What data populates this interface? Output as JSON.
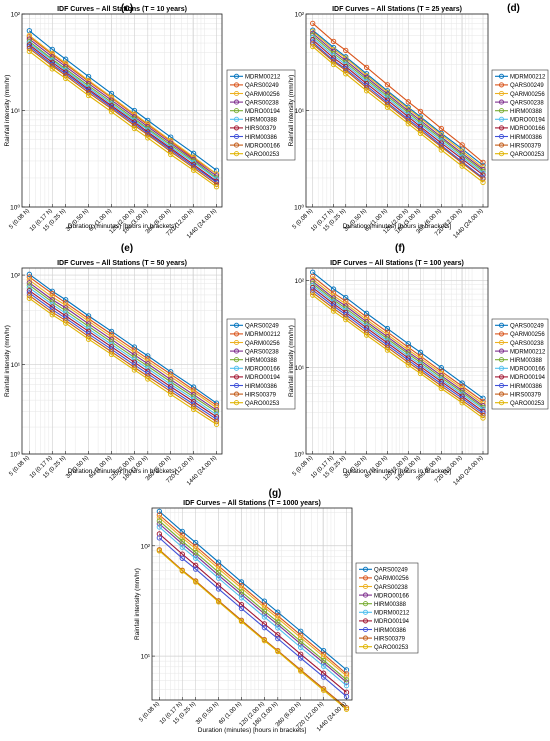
{
  "figure": {
    "x_ticks": [
      5,
      10,
      15,
      30,
      60,
      120,
      180,
      360,
      720,
      1440
    ],
    "x_tick_labels": [
      "5 (0.08 h)",
      "10 (0.17 h)",
      "15 (0.25 h)",
      "30 (0.50 h)",
      "60 (1.00 h)",
      "120 (2.00 h)",
      "180 (3.00 h)",
      "360 (6.00 h)",
      "720 (12.00 h)",
      "1440 (24.00 h)"
    ]
  },
  "chart_data": [
    {
      "panel_letter": "(c)",
      "type": "line",
      "title": "IDF Curves – All Stations (T = 10 years)",
      "xlabel": "Duration (minutes)  [hours in brackets]",
      "ylabel": "Rainfall intensity (mm/hr)",
      "x_scale": "log",
      "y_scale": "log",
      "ylim": [
        1,
        100
      ],
      "y_ticks": [
        1,
        10,
        100
      ],
      "y_tick_labels": [
        "10⁰",
        "10¹",
        "10²"
      ],
      "grid": true,
      "legend_position": "right",
      "x": [
        5,
        10,
        15,
        30,
        60,
        120,
        180,
        360,
        720,
        1440
      ],
      "series": [
        {
          "name": "MDRM00212",
          "color": "#0072bd",
          "values": [
            67,
            43,
            34,
            22.5,
            15,
            10,
            7.9,
            5.3,
            3.6,
            2.4
          ]
        },
        {
          "name": "QARS00249",
          "color": "#d95319",
          "values": [
            58,
            38,
            30,
            20,
            13.5,
            9,
            7.1,
            4.8,
            3.2,
            2.2
          ]
        },
        {
          "name": "QARM00256",
          "color": "#edb120",
          "values": [
            60,
            39,
            31,
            20.5,
            13.8,
            9.2,
            7.3,
            4.9,
            3.3,
            2.2
          ]
        },
        {
          "name": "QARS00238",
          "color": "#7e2f8e",
          "values": [
            55,
            36,
            28.5,
            19,
            12.8,
            8.6,
            6.8,
            4.6,
            3.1,
            2.1
          ]
        },
        {
          "name": "MDRO00194",
          "color": "#77ac30",
          "values": [
            52,
            34,
            27,
            18,
            12.2,
            8.2,
            6.5,
            4.4,
            3.0,
            2.0
          ]
        },
        {
          "name": "HIRM00388",
          "color": "#4dbeee",
          "values": [
            50,
            33,
            26,
            17.3,
            11.7,
            7.9,
            6.3,
            4.2,
            2.9,
            1.95
          ]
        },
        {
          "name": "HIRS00379",
          "color": "#a2142f",
          "values": [
            48,
            31.5,
            25,
            16.6,
            11.2,
            7.6,
            6.0,
            4.05,
            2.75,
            1.85
          ]
        },
        {
          "name": "HIRM00386",
          "color": "#3f51d8",
          "values": [
            46,
            30,
            24,
            16,
            10.8,
            7.3,
            5.8,
            3.9,
            2.65,
            1.8
          ]
        },
        {
          "name": "MDRO00166",
          "color": "#c25a16",
          "values": [
            44,
            29,
            23,
            15.3,
            10.4,
            7.0,
            5.6,
            3.75,
            2.55,
            1.72
          ]
        },
        {
          "name": "QARO00253",
          "color": "#e0b400",
          "values": [
            41,
            27,
            21.5,
            14.3,
            9.7,
            6.5,
            5.2,
            3.5,
            2.4,
            1.62
          ]
        }
      ]
    },
    {
      "panel_letter": "(d)",
      "type": "line",
      "title": "IDF Curves – All Stations (T = 25 years)",
      "xlabel": "Duration (minutes)  [hours in brackets]",
      "ylabel": "Rainfall intensity (mm/hr)",
      "x_scale": "log",
      "y_scale": "log",
      "ylim": [
        1,
        100
      ],
      "y_ticks": [
        1,
        10,
        100
      ],
      "y_tick_labels": [
        "10⁰",
        "10¹",
        "10²"
      ],
      "grid": true,
      "legend_position": "right",
      "x": [
        5,
        10,
        15,
        30,
        60,
        120,
        180,
        360,
        720,
        1440
      ],
      "series": [
        {
          "name": "MDRM00212",
          "color": "#0072bd",
          "values": [
            68,
            45,
            36,
            24,
            16,
            10.8,
            8.6,
            5.8,
            4.0,
            2.7
          ]
        },
        {
          "name": "QARS00249",
          "color": "#d95319",
          "values": [
            80,
            52,
            42,
            28,
            18.5,
            12.3,
            9.8,
            6.5,
            4.4,
            2.9
          ]
        },
        {
          "name": "QARM00256",
          "color": "#edb120",
          "values": [
            66,
            43,
            35,
            23,
            15.5,
            10.4,
            8.3,
            5.6,
            3.8,
            2.55
          ]
        },
        {
          "name": "QARS00238",
          "color": "#7e2f8e",
          "values": [
            63,
            41,
            33,
            22,
            14.8,
            9.9,
            7.9,
            5.3,
            3.6,
            2.45
          ]
        },
        {
          "name": "HIRM00388",
          "color": "#77ac30",
          "values": [
            60,
            39,
            31.5,
            21,
            14.1,
            9.5,
            7.5,
            5.1,
            3.45,
            2.35
          ]
        },
        {
          "name": "MDRO00194",
          "color": "#4dbeee",
          "values": [
            57,
            37,
            30,
            20,
            13.5,
            9.0,
            7.2,
            4.85,
            3.3,
            2.25
          ]
        },
        {
          "name": "MDRO00166",
          "color": "#a2142f",
          "values": [
            54,
            35,
            28.5,
            19,
            12.8,
            8.6,
            6.8,
            4.6,
            3.15,
            2.15
          ]
        },
        {
          "name": "HIRM00386",
          "color": "#3f51d8",
          "values": [
            51,
            33,
            27,
            18,
            12.1,
            8.1,
            6.5,
            4.35,
            2.95,
            2.0
          ]
        },
        {
          "name": "HIRS00379",
          "color": "#c25a16",
          "values": [
            49,
            32,
            26,
            17.2,
            11.6,
            7.8,
            6.2,
            4.2,
            2.85,
            1.95
          ]
        },
        {
          "name": "QARO00253",
          "color": "#e0b400",
          "values": [
            46,
            30,
            24,
            16,
            10.8,
            7.3,
            5.8,
            3.9,
            2.65,
            1.8
          ]
        }
      ]
    },
    {
      "panel_letter": "(e)",
      "type": "line",
      "title": "IDF Curves – All Stations (T = 50 years)",
      "xlabel": "Duration (minutes)  [hours in brackets]",
      "ylabel": "Rainfall intensity (mm/hr)",
      "x_scale": "log",
      "y_scale": "log",
      "ylim": [
        1,
        120
      ],
      "y_ticks": [
        1,
        10,
        100
      ],
      "y_tick_labels": [
        "10⁰",
        "10¹",
        "10²"
      ],
      "grid": true,
      "legend_position": "right",
      "x": [
        5,
        10,
        15,
        30,
        60,
        120,
        180,
        360,
        720,
        1440
      ],
      "series": [
        {
          "name": "QARS00249",
          "color": "#0072bd",
          "values": [
            102,
            66,
            53,
            35,
            23.5,
            15.7,
            12.5,
            8.3,
            5.6,
            3.7
          ]
        },
        {
          "name": "MDRM00212",
          "color": "#d95319",
          "values": [
            95,
            62,
            49,
            32.5,
            21.8,
            14.6,
            11.6,
            7.8,
            5.2,
            3.5
          ]
        },
        {
          "name": "QARM00256",
          "color": "#edb120",
          "values": [
            88,
            57,
            46,
            30.5,
            20.4,
            13.7,
            10.9,
            7.3,
            4.95,
            3.3
          ]
        },
        {
          "name": "QARS00238",
          "color": "#7e2f8e",
          "values": [
            82,
            53,
            43,
            28.5,
            19.1,
            12.8,
            10.2,
            6.8,
            4.6,
            3.1
          ]
        },
        {
          "name": "HIRM00388",
          "color": "#77ac30",
          "values": [
            77,
            50,
            40,
            26.7,
            17.9,
            12.0,
            9.6,
            6.4,
            4.35,
            2.95
          ]
        },
        {
          "name": "MDRO00166",
          "color": "#4dbeee",
          "values": [
            72,
            47,
            37.5,
            25,
            16.8,
            11.3,
            9.0,
            6.0,
            4.1,
            2.75
          ]
        },
        {
          "name": "MDRO00194",
          "color": "#a2142f",
          "values": [
            67,
            44,
            35,
            23.5,
            15.8,
            10.6,
            8.4,
            5.65,
            3.85,
            2.6
          ]
        },
        {
          "name": "HIRM00386",
          "color": "#3f51d8",
          "values": [
            63,
            41,
            33,
            22,
            14.8,
            9.9,
            7.9,
            5.3,
            3.6,
            2.45
          ]
        },
        {
          "name": "HIRS00379",
          "color": "#c25a16",
          "values": [
            59,
            38.5,
            31,
            20.6,
            13.9,
            9.3,
            7.4,
            5.0,
            3.4,
            2.3
          ]
        },
        {
          "name": "QARO00253",
          "color": "#e0b400",
          "values": [
            55,
            36,
            29,
            19.2,
            13.0,
            8.7,
            6.9,
            4.65,
            3.15,
            2.15
          ]
        }
      ]
    },
    {
      "panel_letter": "(f)",
      "type": "line",
      "title": "IDF Curves – All Stations (T = 100 years)",
      "xlabel": "Duration (minutes)  [hours in brackets]",
      "ylabel": "Rainfall intensity (mm/hr)",
      "x_scale": "log",
      "y_scale": "log",
      "ylim": [
        1,
        140
      ],
      "y_ticks": [
        1,
        10,
        100
      ],
      "y_tick_labels": [
        "10⁰",
        "10¹",
        "10²"
      ],
      "grid": true,
      "legend_position": "right",
      "x": [
        5,
        10,
        15,
        30,
        60,
        120,
        180,
        360,
        720,
        1440
      ],
      "series": [
        {
          "name": "QARS00249",
          "color": "#0072bd",
          "values": [
            125,
            80,
            64,
            42,
            28,
            18.7,
            14.9,
            9.9,
            6.6,
            4.4
          ]
        },
        {
          "name": "QARM00256",
          "color": "#d95319",
          "values": [
            112,
            72,
            58,
            38,
            25.5,
            17.0,
            13.5,
            9.0,
            6.05,
            4.05
          ]
        },
        {
          "name": "QARS00238",
          "color": "#edb120",
          "values": [
            104,
            67,
            54,
            35.5,
            23.8,
            15.9,
            12.7,
            8.5,
            5.7,
            3.8
          ]
        },
        {
          "name": "MDRM00212",
          "color": "#7e2f8e",
          "values": [
            98,
            63,
            51,
            33.5,
            22.5,
            15.0,
            12.0,
            8.0,
            5.4,
            3.6
          ]
        },
        {
          "name": "HIRM00388",
          "color": "#77ac30",
          "values": [
            93,
            60,
            48,
            31.8,
            21.3,
            14.3,
            11.4,
            7.6,
            5.15,
            3.45
          ]
        },
        {
          "name": "MDRO00166",
          "color": "#4dbeee",
          "values": [
            88,
            57,
            45.5,
            30,
            20.2,
            13.5,
            10.8,
            7.2,
            4.9,
            3.3
          ]
        },
        {
          "name": "MDRO00194",
          "color": "#a2142f",
          "values": [
            83,
            54,
            43,
            28.5,
            19.1,
            12.8,
            10.2,
            6.85,
            4.65,
            3.1
          ]
        },
        {
          "name": "HIRM00386",
          "color": "#3f51d8",
          "values": [
            78,
            51,
            40.5,
            26.8,
            18.0,
            12.1,
            9.6,
            6.45,
            4.4,
            2.95
          ]
        },
        {
          "name": "HIRS00379",
          "color": "#c25a16",
          "values": [
            73,
            48,
            38,
            25.2,
            17.0,
            11.4,
            9.1,
            6.1,
            4.15,
            2.8
          ]
        },
        {
          "name": "QARO00253",
          "color": "#e0b400",
          "values": [
            68,
            44.5,
            35.5,
            23.5,
            15.8,
            10.6,
            8.5,
            5.7,
            3.9,
            2.6
          ]
        }
      ]
    },
    {
      "panel_letter": "(g)",
      "type": "line",
      "title": "IDF Curves – All Stations (T = 1000 years)",
      "xlabel": "Duration (minutes)  [hours in brackets]",
      "ylabel": "Rainfall intensity (mm/hr)",
      "x_scale": "log",
      "y_scale": "log",
      "ylim": [
        4,
        220
      ],
      "y_ticks": [
        10,
        100
      ],
      "y_tick_labels": [
        "10¹",
        "10²"
      ],
      "grid": true,
      "legend_position": "right",
      "x": [
        5,
        10,
        15,
        30,
        60,
        120,
        180,
        360,
        720,
        1440
      ],
      "series": [
        {
          "name": "QARS00249",
          "color": "#0072bd",
          "values": [
            205,
            135,
            107,
            71,
            47,
            31.5,
            25,
            16.8,
            11.2,
            7.5
          ]
        },
        {
          "name": "QARM00256",
          "color": "#d95319",
          "values": [
            190,
            125,
            99,
            65.5,
            43.5,
            29,
            23.2,
            15.5,
            10.4,
            6.9
          ]
        },
        {
          "name": "QARS00238",
          "color": "#edb120",
          "values": [
            180,
            118,
            94,
            62,
            41.3,
            27.6,
            22,
            14.7,
            9.9,
            6.6
          ]
        },
        {
          "name": "MDRO00166",
          "color": "#7e2f8e",
          "values": [
            158,
            104,
            82,
            54,
            36.2,
            24.2,
            19.3,
            12.9,
            8.7,
            5.8
          ]
        },
        {
          "name": "HIRM00388",
          "color": "#77ac30",
          "values": [
            168,
            110,
            87,
            57.5,
            38.3,
            25.6,
            20.4,
            13.6,
            9.15,
            6.1
          ]
        },
        {
          "name": "MDRM00212",
          "color": "#4dbeee",
          "values": [
            148,
            97,
            77,
            50.8,
            33.8,
            22.6,
            18.0,
            12.0,
            8.1,
            5.4
          ]
        },
        {
          "name": "MDRO00194",
          "color": "#a2142f",
          "values": [
            128,
            84,
            66.5,
            44,
            29.3,
            19.6,
            15.6,
            10.4,
            7.0,
            4.7
          ]
        },
        {
          "name": "HIRM00386",
          "color": "#3f51d8",
          "values": [
            118,
            77,
            61.5,
            40.6,
            27.0,
            18.1,
            14.4,
            9.6,
            6.45,
            4.3
          ]
        },
        {
          "name": "HIRS00379",
          "color": "#c25a16",
          "values": [
            92,
            60,
            48,
            31.7,
            21.1,
            14.1,
            11.2,
            7.5,
            5.05,
            3.4
          ]
        },
        {
          "name": "QARO00253",
          "color": "#e0b400",
          "values": [
            90,
            59,
            47,
            31,
            20.6,
            13.8,
            11.0,
            7.3,
            4.9,
            3.3
          ]
        }
      ]
    }
  ]
}
